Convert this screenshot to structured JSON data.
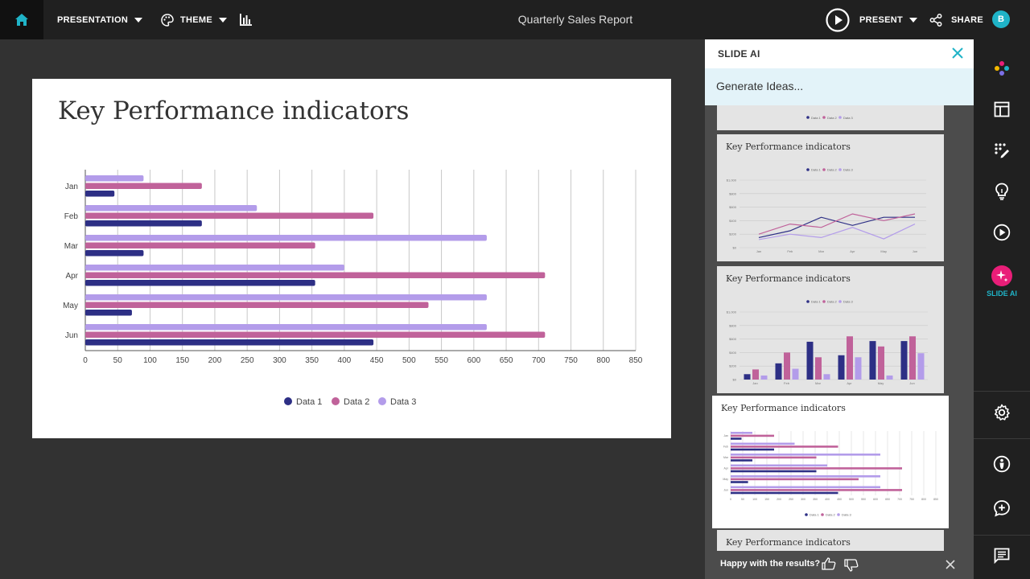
{
  "topbar": {
    "presentation_label": "PRESENTATION",
    "theme_label": "THEME",
    "document_title": "Quarterly Sales Report",
    "present_label": "PRESENT",
    "share_label": "SHARE",
    "avatar_initial": "B"
  },
  "slide": {
    "title": "Key Performance indicators"
  },
  "chart_data": {
    "type": "bar",
    "orientation": "horizontal",
    "categories": [
      "Jan",
      "Feb",
      "Mar",
      "Apr",
      "May",
      "Jun"
    ],
    "series": [
      {
        "name": "Data 1",
        "color": "#2d2f85",
        "values": [
          45,
          180,
          90,
          355,
          72,
          445
        ]
      },
      {
        "name": "Data 2",
        "color": "#c0629a",
        "values": [
          180,
          445,
          355,
          710,
          530,
          710
        ]
      },
      {
        "name": "Data 3",
        "color": "#b39cea",
        "values": [
          90,
          265,
          620,
          400,
          620,
          620
        ]
      }
    ],
    "x_ticks": [
      "0",
      "50",
      "100",
      "150",
      "200",
      "250",
      "300",
      "350",
      "400",
      "450",
      "500",
      "550",
      "600",
      "650",
      "700",
      "750",
      "800",
      "850"
    ],
    "xlim": [
      0,
      850
    ],
    "grid": true,
    "legend_position": "bottom"
  },
  "ai_panel": {
    "title": "SLIDE AI",
    "generate_label": "Generate Ideas...",
    "thumb_title": "Key Performance indicators",
    "feedback_question": "Happy with the results?",
    "legend_labels": [
      "Data 1",
      "Data 2",
      "Data 3"
    ],
    "line_thumb": {
      "y_labels": [
        "$1,000",
        "$800",
        "$600",
        "$400",
        "$200",
        "$0"
      ],
      "x_labels": [
        "Jan",
        "Feb",
        "Mar",
        "Apr",
        "May",
        "Jun"
      ],
      "series": [
        {
          "color": "#2d2f85",
          "values": [
            150,
            250,
            450,
            330,
            450,
            450
          ]
        },
        {
          "color": "#c0629a",
          "values": [
            200,
            350,
            300,
            500,
            400,
            500
          ]
        },
        {
          "color": "#b39cea",
          "values": [
            120,
            200,
            150,
            300,
            130,
            350
          ]
        }
      ]
    },
    "bar_thumb": {
      "y_labels": [
        "$1,000",
        "$800",
        "$600",
        "$400",
        "$200",
        "$0"
      ],
      "x_labels": [
        "Jan",
        "Feb",
        "Mar",
        "Apr",
        "May",
        "Jun"
      ],
      "series": [
        {
          "color": "#2d2f85",
          "values": [
            80,
            240,
            560,
            360,
            570,
            570
          ]
        },
        {
          "color": "#c0629a",
          "values": [
            150,
            400,
            330,
            640,
            490,
            640
          ]
        },
        {
          "color": "#b39cea",
          "values": [
            60,
            160,
            80,
            330,
            60,
            390
          ]
        }
      ]
    }
  },
  "rail": {
    "slide_ai_label": "SLIDE AI"
  },
  "colors": {
    "accent": "#1fb3c7",
    "ai_pink": "#e91e78",
    "topbar_bg": "#202020",
    "canvas_bg": "#323232"
  }
}
